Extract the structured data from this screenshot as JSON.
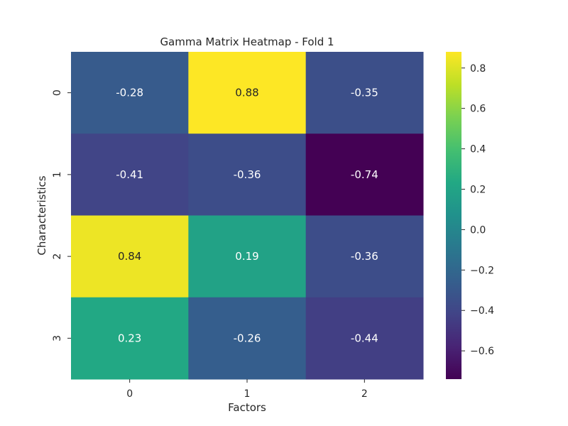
{
  "chart_data": {
    "type": "heatmap",
    "title": "Gamma Matrix Heatmap - Fold 1",
    "xlabel": "Factors",
    "ylabel": "Characteristics",
    "x_categories": [
      "0",
      "1",
      "2"
    ],
    "y_categories": [
      "0",
      "1",
      "2",
      "3"
    ],
    "values": [
      [
        -0.28,
        0.88,
        -0.35
      ],
      [
        -0.41,
        -0.36,
        -0.74
      ],
      [
        0.84,
        0.19,
        -0.36
      ],
      [
        0.23,
        -0.26,
        -0.44
      ]
    ],
    "value_labels": [
      [
        "-0.28",
        "0.88",
        "-0.35"
      ],
      [
        "-0.41",
        "-0.36",
        "-0.74"
      ],
      [
        "0.84",
        "0.19",
        "-0.36"
      ],
      [
        "0.23",
        "-0.26",
        "-0.44"
      ]
    ],
    "colormap": "viridis",
    "vmin": -0.74,
    "vmax": 0.88,
    "colorbar_ticks": [
      0.8,
      0.6,
      0.4,
      0.2,
      0.0,
      -0.2,
      -0.4,
      -0.6
    ],
    "colorbar_tick_labels": [
      "0.8",
      "0.6",
      "0.4",
      "0.2",
      "0.0",
      "−0.2",
      "−0.4",
      "−0.6"
    ],
    "annotation_colors": {
      "dark": "#262626",
      "light": "#ffffff"
    },
    "tick_color": "#262626",
    "background": "#ffffff"
  }
}
